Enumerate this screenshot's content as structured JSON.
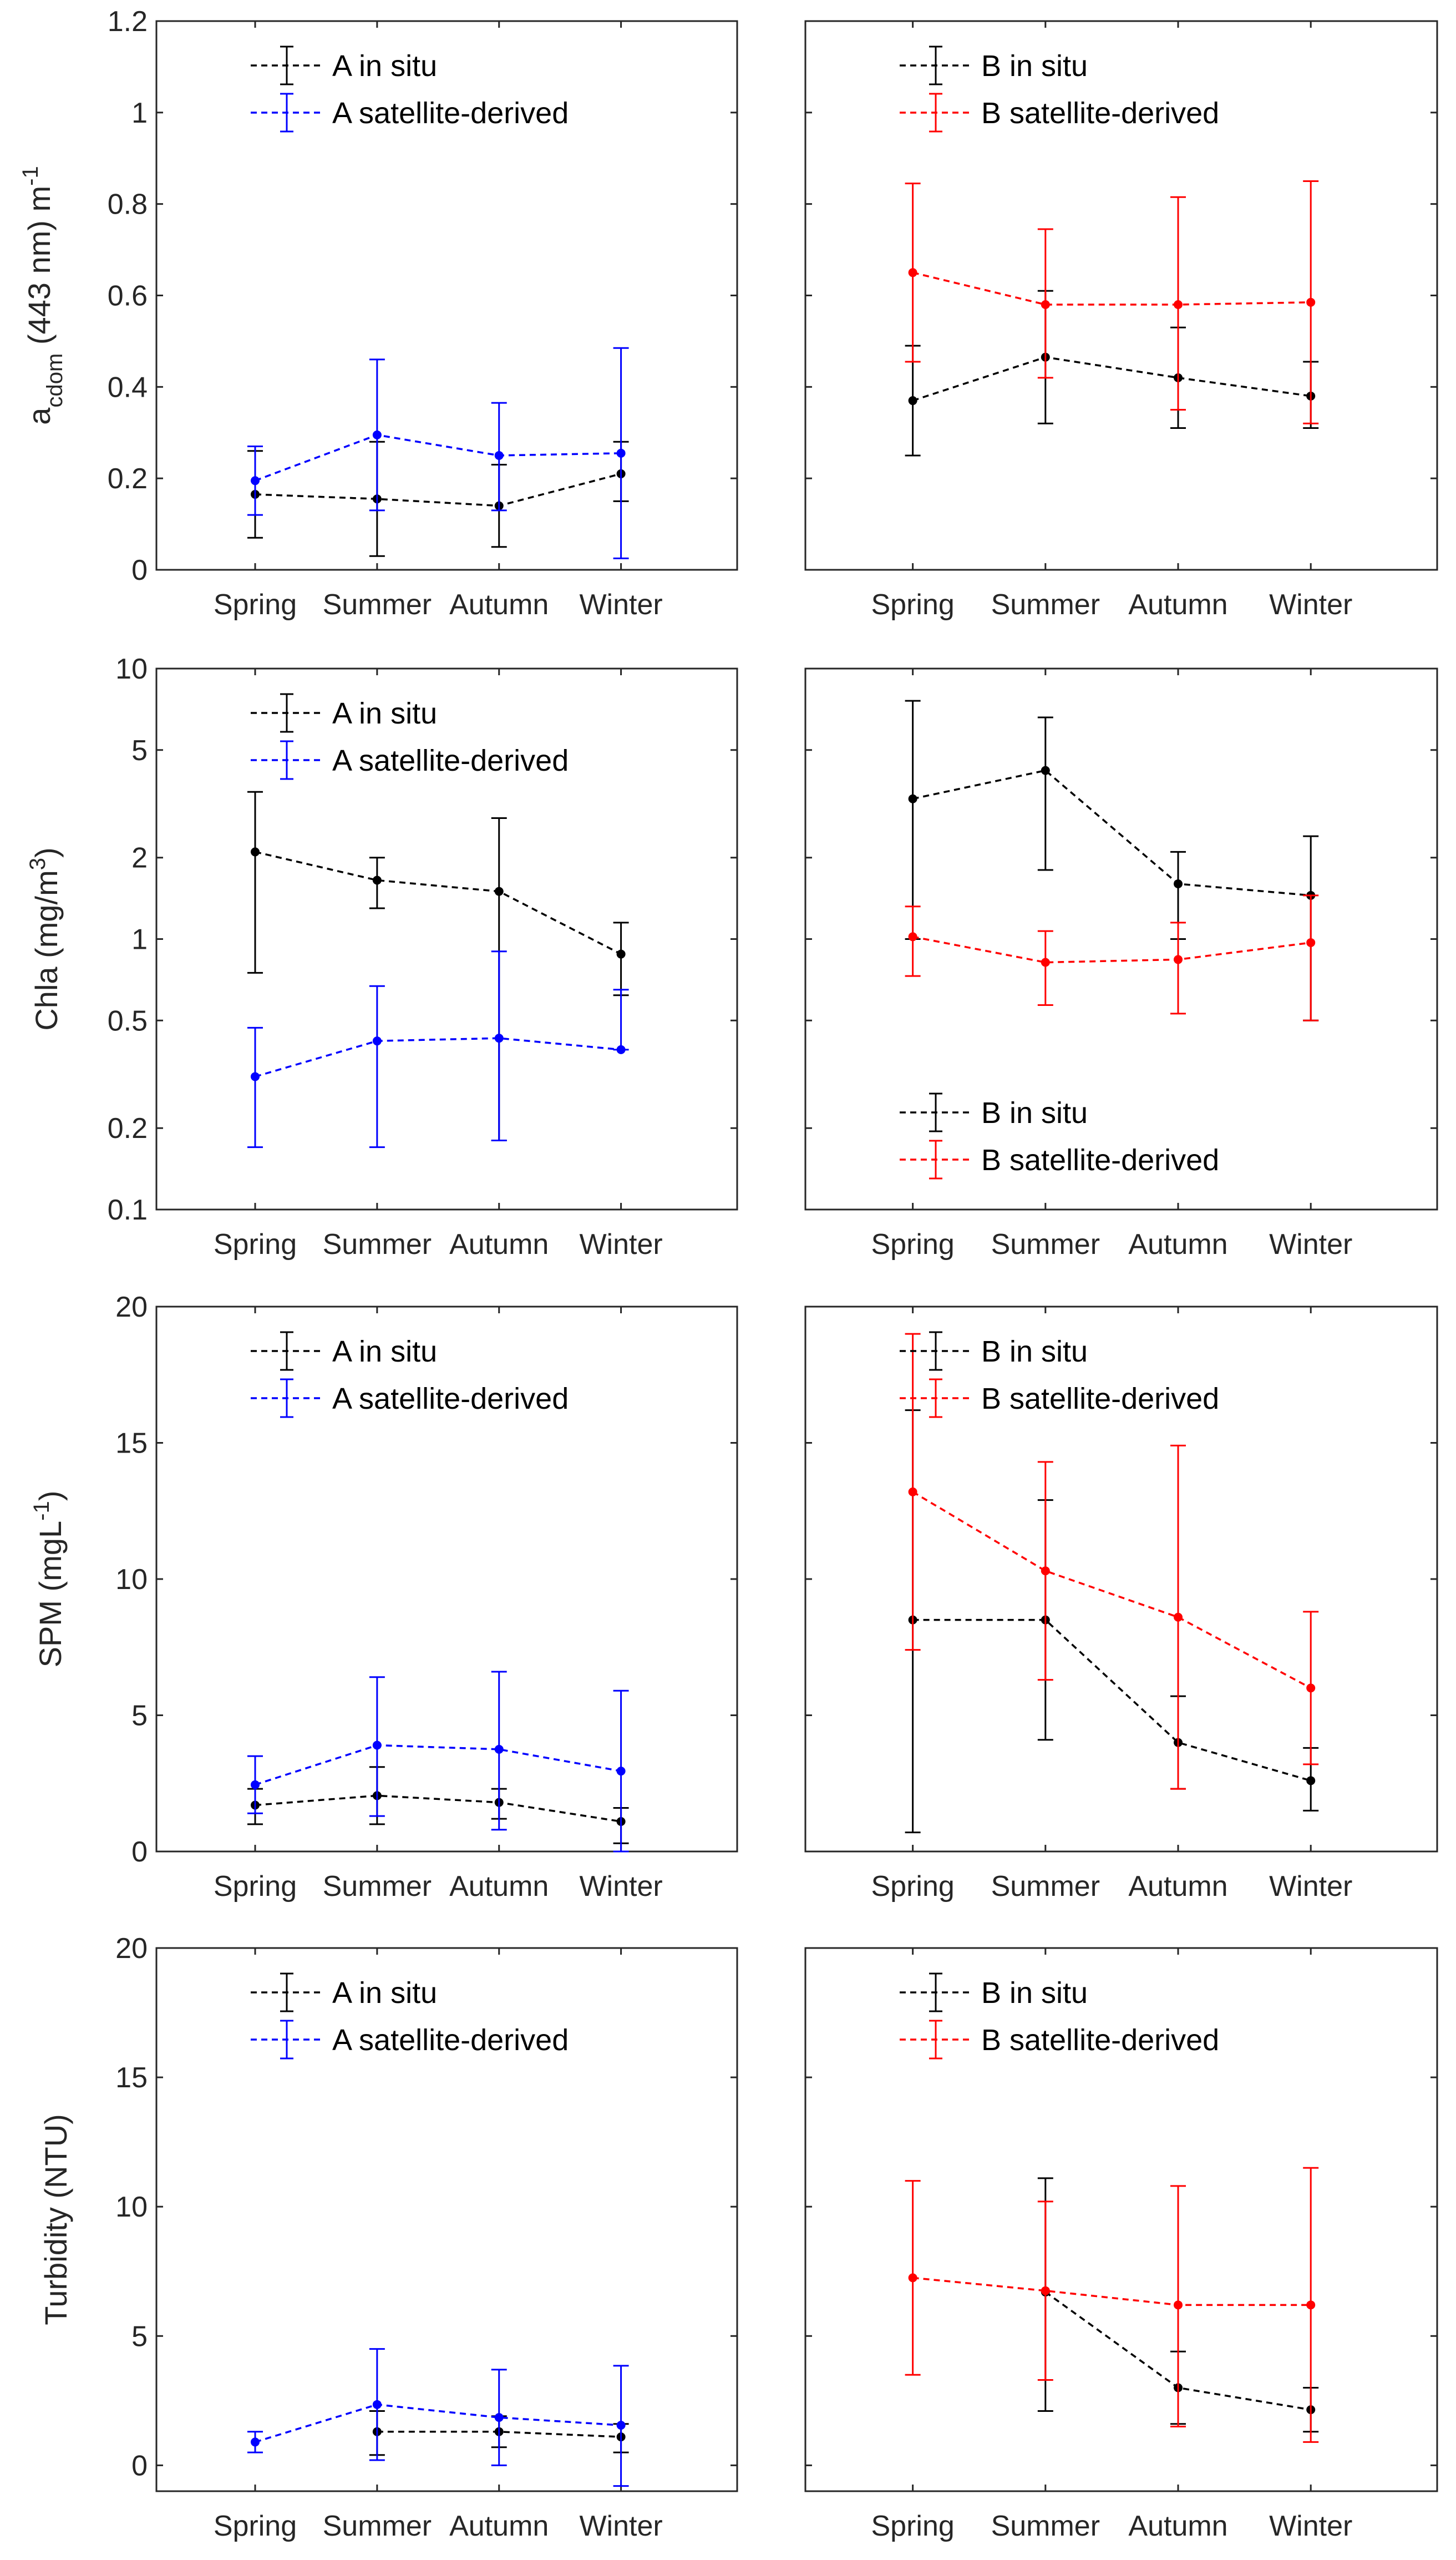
{
  "colors": {
    "insitu": "#000000",
    "satA": "#0000ff",
    "satB": "#ff0000",
    "axis": "#262626"
  },
  "chart_data": [
    {
      "type": "line",
      "panel": "row1-left",
      "ylabel_parts": [
        "a",
        "cdom",
        " (443 nm) m",
        "-1"
      ],
      "yscale": "linear",
      "ylim": [
        0,
        1.2
      ],
      "yticks": [
        "0",
        "0.2",
        "0.4",
        "0.6",
        "0.8",
        "1",
        "1.2"
      ],
      "ytick_values": [
        0,
        0.2,
        0.4,
        0.6,
        0.8,
        1,
        1.2
      ],
      "categories": [
        "Spring",
        "Summer",
        "Autumn",
        "Winter"
      ],
      "legend_position": "top-left",
      "series": [
        {
          "name": "A in situ",
          "color": "#000000",
          "values": [
            0.165,
            0.155,
            0.14,
            0.21
          ],
          "lower": [
            0.07,
            0.03,
            0.05,
            0.15
          ],
          "upper": [
            0.26,
            0.28,
            0.23,
            0.28
          ]
        },
        {
          "name": "A satellite-derived",
          "color": "#0000ff",
          "values": [
            0.195,
            0.295,
            0.25,
            0.255
          ],
          "lower": [
            0.12,
            0.13,
            0.13,
            0.025
          ],
          "upper": [
            0.27,
            0.46,
            0.365,
            0.485
          ]
        }
      ]
    },
    {
      "type": "line",
      "panel": "row1-right",
      "yscale": "linear",
      "ylim": [
        0,
        1.2
      ],
      "ytick_values": [
        0,
        0.2,
        0.4,
        0.6,
        0.8,
        1,
        1.2
      ],
      "categories": [
        "Spring",
        "Summer",
        "Autumn",
        "Winter"
      ],
      "legend_position": "top-left",
      "series": [
        {
          "name": "B in situ",
          "color": "#000000",
          "values": [
            0.37,
            0.465,
            0.42,
            0.38
          ],
          "lower": [
            0.25,
            0.32,
            0.31,
            0.31
          ],
          "upper": [
            0.49,
            0.61,
            0.53,
            0.455
          ]
        },
        {
          "name": "B satellite-derived",
          "color": "#ff0000",
          "values": [
            0.65,
            0.58,
            0.58,
            0.585
          ],
          "lower": [
            0.455,
            0.42,
            0.35,
            0.32
          ],
          "upper": [
            0.845,
            0.745,
            0.815,
            0.85
          ]
        }
      ]
    },
    {
      "type": "line",
      "panel": "row2-left",
      "ylabel_parts": [
        "Chla (mg/m",
        "3",
        ")"
      ],
      "yscale": "log",
      "ylim": [
        0.1,
        10
      ],
      "yticks": [
        "0.1",
        "0.2",
        "0.5",
        "1",
        "2",
        "5",
        "10"
      ],
      "ytick_values": [
        0.1,
        0.2,
        0.5,
        1,
        2,
        5,
        10
      ],
      "categories": [
        "Spring",
        "Summer",
        "Autumn",
        "Winter"
      ],
      "legend_position": "top-left",
      "series": [
        {
          "name": "A in situ",
          "color": "#000000",
          "values": [
            2.1,
            1.65,
            1.5,
            0.88
          ],
          "lower": [
            0.75,
            1.3,
            0.18,
            0.62
          ],
          "upper": [
            3.5,
            2.0,
            2.8,
            1.15
          ]
        },
        {
          "name": "A satellite-derived",
          "color": "#0000ff",
          "values": [
            0.31,
            0.42,
            0.43,
            0.39
          ],
          "lower": [
            0.17,
            0.17,
            0.18,
            0.39
          ],
          "upper": [
            0.47,
            0.67,
            0.9,
            0.65
          ]
        }
      ]
    },
    {
      "type": "line",
      "panel": "row2-right",
      "yscale": "log",
      "ylim": [
        0.1,
        10
      ],
      "ytick_values": [
        0.1,
        0.2,
        0.5,
        1,
        2,
        5,
        10
      ],
      "categories": [
        "Spring",
        "Summer",
        "Autumn",
        "Winter"
      ],
      "legend_position": "bottom-left",
      "series": [
        {
          "name": "B in situ",
          "color": "#000000",
          "values": [
            3.3,
            4.2,
            1.6,
            1.45
          ],
          "lower": [
            1.0,
            1.8,
            1.0,
            0.5
          ],
          "upper": [
            7.6,
            6.6,
            2.1,
            2.4
          ]
        },
        {
          "name": "B satellite-derived",
          "color": "#ff0000",
          "values": [
            1.02,
            0.82,
            0.84,
            0.97
          ],
          "lower": [
            0.73,
            0.57,
            0.53,
            0.5
          ],
          "upper": [
            1.32,
            1.07,
            1.15,
            1.45
          ]
        }
      ]
    },
    {
      "type": "line",
      "panel": "row3-left",
      "ylabel_parts": [
        "SPM (mgL",
        "-1",
        ")"
      ],
      "yscale": "linear",
      "ylim": [
        0,
        20
      ],
      "yticks": [
        "0",
        "5",
        "10",
        "15",
        "20"
      ],
      "ytick_values": [
        0,
        5,
        10,
        15,
        20
      ],
      "categories": [
        "Spring",
        "Summer",
        "Autumn",
        "Winter"
      ],
      "legend_position": "top-left",
      "series": [
        {
          "name": "A in situ",
          "color": "#000000",
          "values": [
            1.7,
            2.05,
            1.8,
            1.1
          ],
          "lower": [
            1.0,
            1.0,
            1.2,
            0.3
          ],
          "upper": [
            2.3,
            3.1,
            2.3,
            1.6
          ]
        },
        {
          "name": "A satellite-derived",
          "color": "#0000ff",
          "values": [
            2.45,
            3.9,
            3.75,
            2.95
          ],
          "lower": [
            1.4,
            1.3,
            0.8,
            0
          ],
          "upper": [
            3.5,
            6.4,
            6.6,
            5.9
          ]
        }
      ]
    },
    {
      "type": "line",
      "panel": "row3-right",
      "yscale": "linear",
      "ylim": [
        0,
        20
      ],
      "ytick_values": [
        0,
        5,
        10,
        15,
        20
      ],
      "categories": [
        "Spring",
        "Summer",
        "Autumn",
        "Winter"
      ],
      "legend_position": "top-left",
      "series": [
        {
          "name": "B in situ",
          "color": "#000000",
          "values": [
            8.5,
            8.5,
            4.0,
            2.6
          ],
          "lower": [
            0.7,
            4.1,
            2.3,
            1.5
          ],
          "upper": [
            16.2,
            12.9,
            5.7,
            3.8
          ]
        },
        {
          "name": "B satellite-derived",
          "color": "#ff0000",
          "values": [
            13.2,
            10.3,
            8.6,
            6.0
          ],
          "lower": [
            7.4,
            6.3,
            2.3,
            3.2
          ],
          "upper": [
            19.0,
            14.3,
            14.9,
            8.8
          ]
        }
      ]
    },
    {
      "type": "line",
      "panel": "row4-left",
      "ylabel_parts": [
        "Turbidity (NTU)"
      ],
      "yscale": "linear",
      "ylim": [
        -1,
        20
      ],
      "yticks": [
        "0",
        "5",
        "10",
        "15",
        "20"
      ],
      "ytick_values": [
        0,
        5,
        10,
        15,
        20
      ],
      "categories": [
        "Spring",
        "Summer",
        "Autumn",
        "Winter"
      ],
      "legend_position": "top-left",
      "series": [
        {
          "name": "A in situ",
          "color": "#000000",
          "values": [
            null,
            1.3,
            1.3,
            1.1
          ],
          "lower": [
            null,
            0.4,
            0.7,
            0.5
          ],
          "upper": [
            null,
            2.1,
            1.9,
            1.6
          ]
        },
        {
          "name": "A satellite-derived",
          "color": "#0000ff",
          "values": [
            0.9,
            2.35,
            1.85,
            1.55
          ],
          "lower": [
            0.5,
            0.2,
            0.0,
            -0.8
          ],
          "upper": [
            1.3,
            4.5,
            3.7,
            3.85
          ]
        }
      ]
    },
    {
      "type": "line",
      "panel": "row4-right",
      "yscale": "linear",
      "ylim": [
        -1,
        20
      ],
      "ytick_values": [
        0,
        5,
        10,
        15,
        20
      ],
      "categories": [
        "Spring",
        "Summer",
        "Autumn",
        "Winter"
      ],
      "legend_position": "top-left",
      "series": [
        {
          "name": "B in situ",
          "color": "#000000",
          "values": [
            null,
            6.7,
            3.0,
            2.15
          ],
          "lower": [
            null,
            2.1,
            1.6,
            1.3
          ],
          "upper": [
            null,
            11.1,
            4.4,
            3.0
          ]
        },
        {
          "name": "B satellite-derived",
          "color": "#ff0000",
          "values": [
            7.25,
            6.75,
            6.2,
            6.2
          ],
          "lower": [
            3.5,
            3.3,
            1.5,
            0.9
          ],
          "upper": [
            11.0,
            10.2,
            10.8,
            11.5
          ]
        }
      ]
    }
  ]
}
